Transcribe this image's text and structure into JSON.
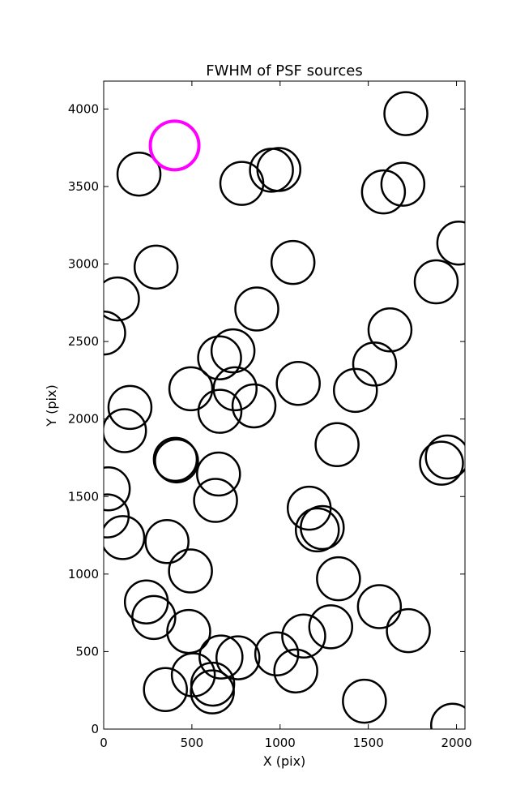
{
  "chart_data": {
    "type": "scatter",
    "title": "FWHM of PSF sources",
    "xlabel": "X (pix)",
    "ylabel": "Y (pix)",
    "xlim": [
      0,
      2048
    ],
    "ylim": [
      0,
      4180
    ],
    "xticks": [
      0,
      500,
      1000,
      1500,
      2000
    ],
    "yticks": [
      0,
      500,
      1000,
      1500,
      2000,
      2500,
      3000,
      3500,
      4000
    ],
    "grid": false,
    "legend": "none",
    "marker": "open-circle",
    "series": [
      {
        "color": "#000000",
        "points": [
          {
            "x": 1713,
            "y": 3970
          },
          {
            "x": 200,
            "y": 3580
          },
          {
            "x": 783,
            "y": 3520
          },
          {
            "x": 951,
            "y": 3605
          },
          {
            "x": 993,
            "y": 3610
          },
          {
            "x": 1586,
            "y": 3465
          },
          {
            "x": 1696,
            "y": 3515
          },
          {
            "x": 2013,
            "y": 3135
          },
          {
            "x": 297,
            "y": 2980
          },
          {
            "x": 1073,
            "y": 3010
          },
          {
            "x": 78,
            "y": 2775
          },
          {
            "x": 1885,
            "y": 2885
          },
          {
            "x": 868,
            "y": 2710
          },
          {
            "x": 0,
            "y": 2555
          },
          {
            "x": 1623,
            "y": 2575
          },
          {
            "x": 657,
            "y": 2395
          },
          {
            "x": 733,
            "y": 2440
          },
          {
            "x": 1536,
            "y": 2355
          },
          {
            "x": 1103,
            "y": 2230
          },
          {
            "x": 494,
            "y": 2195
          },
          {
            "x": 745,
            "y": 2195
          },
          {
            "x": 1427,
            "y": 2185
          },
          {
            "x": 149,
            "y": 2075
          },
          {
            "x": 659,
            "y": 2050
          },
          {
            "x": 852,
            "y": 2085
          },
          {
            "x": 118,
            "y": 1925
          },
          {
            "x": 1323,
            "y": 1835
          },
          {
            "x": 406,
            "y": 1740
          },
          {
            "x": 413,
            "y": 1730
          },
          {
            "x": 1915,
            "y": 1715
          },
          {
            "x": 1948,
            "y": 1755
          },
          {
            "x": 651,
            "y": 1645
          },
          {
            "x": 26,
            "y": 1550
          },
          {
            "x": 634,
            "y": 1475
          },
          {
            "x": 1165,
            "y": 1425
          },
          {
            "x": 20,
            "y": 1375
          },
          {
            "x": 1239,
            "y": 1300
          },
          {
            "x": 1211,
            "y": 1285
          },
          {
            "x": 108,
            "y": 1235
          },
          {
            "x": 359,
            "y": 1210
          },
          {
            "x": 492,
            "y": 1020
          },
          {
            "x": 1331,
            "y": 970
          },
          {
            "x": 242,
            "y": 820
          },
          {
            "x": 1563,
            "y": 790
          },
          {
            "x": 284,
            "y": 720
          },
          {
            "x": 1287,
            "y": 660
          },
          {
            "x": 482,
            "y": 630
          },
          {
            "x": 1727,
            "y": 635
          },
          {
            "x": 1134,
            "y": 600
          },
          {
            "x": 665,
            "y": 465
          },
          {
            "x": 761,
            "y": 460
          },
          {
            "x": 981,
            "y": 485
          },
          {
            "x": 1089,
            "y": 375
          },
          {
            "x": 508,
            "y": 350
          },
          {
            "x": 618,
            "y": 290
          },
          {
            "x": 616,
            "y": 240
          },
          {
            "x": 350,
            "y": 255
          },
          {
            "x": 1478,
            "y": 180
          },
          {
            "x": 1978,
            "y": 25
          }
        ]
      },
      {
        "color": "#ff00ff",
        "points": [
          {
            "x": 402,
            "y": 3765
          }
        ]
      }
    ]
  }
}
